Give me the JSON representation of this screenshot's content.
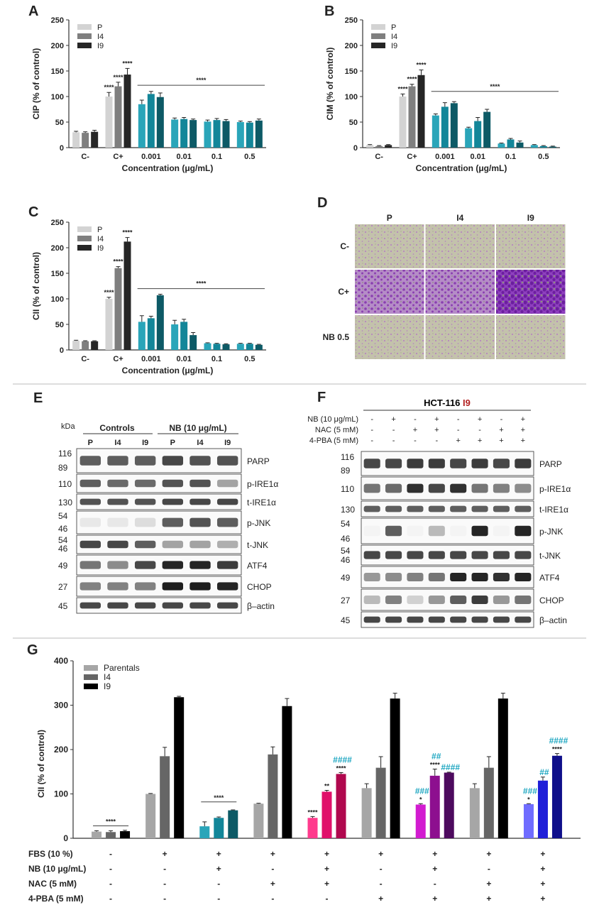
{
  "chart_data": [
    {
      "panel": "A",
      "type": "bar",
      "ylabel": "CIP (% of control)",
      "xlabel": "Concentration (μg/mL)",
      "categories": [
        "C-",
        "C+",
        "0.001",
        "0.01",
        "0.1",
        "0.5"
      ],
      "ylim": [
        0,
        250
      ],
      "yticks": [
        0,
        50,
        100,
        150,
        200,
        250
      ],
      "legend": [
        "P",
        "I4",
        "I9"
      ],
      "series": [
        {
          "name": "P",
          "values": [
            30,
            100,
            85,
            55,
            51,
            50
          ],
          "errors": [
            2,
            8,
            8,
            3,
            3,
            2
          ]
        },
        {
          "name": "I4",
          "values": [
            29,
            120,
            105,
            56,
            54,
            49
          ],
          "errors": [
            2,
            8,
            5,
            3,
            3,
            2
          ]
        },
        {
          "name": "I9",
          "values": [
            31,
            143,
            99,
            54,
            52,
            53
          ],
          "errors": [
            3,
            12,
            8,
            2,
            3,
            3
          ]
        }
      ],
      "annotations": [
        "****",
        "****",
        "****",
        "****"
      ]
    },
    {
      "panel": "B",
      "type": "bar",
      "ylabel": "CIM (% of control)",
      "xlabel": "Concentration (μg/mL)",
      "categories": [
        "C-",
        "C+",
        "0.001",
        "0.01",
        "0.1",
        "0.5"
      ],
      "ylim": [
        0,
        250
      ],
      "yticks": [
        0,
        50,
        100,
        150,
        200,
        250
      ],
      "legend": [
        "P",
        "I4",
        "I9"
      ],
      "series": [
        {
          "name": "P",
          "values": [
            5,
            100,
            63,
            38,
            8,
            5
          ],
          "errors": [
            1,
            5,
            3,
            2,
            1,
            1
          ]
        },
        {
          "name": "I4",
          "values": [
            3,
            120,
            80,
            52,
            16,
            3
          ],
          "errors": [
            1,
            4,
            8,
            7,
            2,
            1
          ]
        },
        {
          "name": "I9",
          "values": [
            5,
            142,
            87,
            70,
            10,
            2
          ],
          "errors": [
            1,
            10,
            3,
            5,
            3,
            1
          ]
        }
      ],
      "annotations": [
        "****",
        "****",
        "****",
        "****"
      ]
    },
    {
      "panel": "C",
      "type": "bar",
      "ylabel": "CII (% of control)",
      "xlabel": "Concentration (μg/mL)",
      "categories": [
        "C-",
        "C+",
        "0.001",
        "0.01",
        "0.1",
        "0.5"
      ],
      "ylim": [
        0,
        250
      ],
      "yticks": [
        0,
        50,
        100,
        150,
        200,
        250
      ],
      "legend": [
        "P",
        "I4",
        "I9"
      ],
      "series": [
        {
          "name": "P",
          "values": [
            18,
            100,
            55,
            50,
            13,
            12
          ],
          "errors": [
            1,
            3,
            12,
            8,
            1,
            1
          ]
        },
        {
          "name": "I4",
          "values": [
            17,
            160,
            62,
            55,
            12,
            12
          ],
          "errors": [
            1,
            3,
            4,
            5,
            1,
            1
          ]
        },
        {
          "name": "I9",
          "values": [
            17,
            212,
            107,
            29,
            11,
            10
          ],
          "errors": [
            1,
            8,
            2,
            5,
            1,
            1
          ]
        }
      ],
      "annotations": [
        "****",
        "****",
        "****",
        "****"
      ]
    },
    {
      "panel": "G",
      "type": "bar",
      "ylabel": "CII (% of control)",
      "ylim": [
        0,
        400
      ],
      "yticks": [
        0,
        100,
        200,
        300,
        400
      ],
      "legend": [
        "Parentals",
        "I4",
        "I9"
      ],
      "groups": [
        {
          "values": [
            15,
            14,
            16
          ],
          "errors": [
            2,
            3,
            2
          ],
          "stars": [
            "",
            "",
            ""
          ],
          "hash": [
            "",
            "",
            ""
          ]
        },
        {
          "values": [
            100,
            185,
            318
          ],
          "errors": [
            1,
            20,
            2
          ],
          "stars": [
            "",
            "",
            ""
          ],
          "hash": [
            "",
            "",
            ""
          ]
        },
        {
          "values": [
            27,
            46,
            63
          ],
          "errors": [
            10,
            2,
            1
          ],
          "stars": [
            "",
            "",
            ""
          ],
          "hash": [
            "",
            "",
            ""
          ]
        },
        {
          "values": [
            78,
            189,
            298
          ],
          "errors": [
            1,
            17,
            17
          ],
          "stars": [
            "",
            "",
            ""
          ],
          "hash": [
            "",
            "",
            ""
          ]
        },
        {
          "values": [
            46,
            105,
            145
          ],
          "errors": [
            3,
            3,
            3
          ],
          "stars": [
            "****",
            "**",
            "****"
          ],
          "hash": [
            "",
            "",
            "####"
          ]
        },
        {
          "values": [
            113,
            159,
            315
          ],
          "errors": [
            10,
            25,
            12
          ],
          "stars": [
            "",
            "",
            ""
          ],
          "hash": [
            "",
            "",
            ""
          ]
        },
        {
          "values": [
            76,
            141,
            148
          ],
          "errors": [
            2,
            15,
            1
          ],
          "stars": [
            "*",
            "****",
            ""
          ],
          "hash": [
            "###",
            "##",
            "####"
          ]
        },
        {
          "values": [
            113,
            159,
            315
          ],
          "errors": [
            10,
            25,
            12
          ],
          "stars": [
            "",
            "",
            ""
          ],
          "hash": [
            "",
            "",
            ""
          ]
        },
        {
          "values": [
            77,
            130,
            186
          ],
          "errors": [
            1,
            8,
            5
          ],
          "stars": [
            "*",
            "",
            "****"
          ],
          "hash": [
            "###",
            "##",
            "####"
          ]
        }
      ],
      "group_annotation_first": "****",
      "group_annotation_third": "****",
      "conditions": [
        {
          "label": "FBS (10 %)",
          "marks": [
            "-",
            "+",
            "+",
            "+",
            "+",
            "+",
            "+",
            "+",
            "+"
          ]
        },
        {
          "label": "NB (10 μg/mL)",
          "marks": [
            "-",
            "-",
            "+",
            "-",
            "+",
            "-",
            "+",
            "-",
            "+"
          ]
        },
        {
          "label": "NAC (5 mM)",
          "marks": [
            "-",
            "-",
            "-",
            "+",
            "+",
            "-",
            "-",
            "+",
            "+"
          ]
        },
        {
          "label": "4-PBA (5 mM)",
          "marks": [
            "-",
            "-",
            "-",
            "-",
            "-",
            "+",
            "+",
            "+",
            "+"
          ]
        }
      ]
    }
  ],
  "panels": {
    "A": "A",
    "B": "B",
    "C": "C",
    "D": "D",
    "E": "E",
    "F": "F",
    "G": "G"
  },
  "panelD": {
    "cols": [
      "P",
      "I4",
      "I9"
    ],
    "rows": [
      "C-",
      "C+",
      "NB 0.5"
    ]
  },
  "panelE": {
    "kda": "kDa",
    "controls": "Controls",
    "nb": "NB (10 μg/mL)",
    "lanes": [
      "P",
      "I4",
      "I9",
      "P",
      "I4",
      "I9"
    ],
    "bands": [
      {
        "kda": [
          "116",
          "89"
        ],
        "label": "PARP"
      },
      {
        "kda": [
          "110"
        ],
        "label": "p-IRE1α"
      },
      {
        "kda": [
          "130"
        ],
        "label": "t-IRE1α"
      },
      {
        "kda": [
          "54",
          "46"
        ],
        "label": "p-JNK"
      },
      {
        "kda": [
          "54",
          "46"
        ],
        "label": "t-JNK"
      },
      {
        "kda": [
          "49"
        ],
        "label": "ATF4"
      },
      {
        "kda": [
          "27"
        ],
        "label": "CHOP"
      },
      {
        "kda": [
          "45"
        ],
        "label": "β–actin"
      }
    ]
  },
  "panelF": {
    "title_cell": "HCT-116",
    "title_line": "I9",
    "treat_rows": [
      {
        "label": "NB (10 μg/mL)",
        "marks": [
          "-",
          "+",
          "-",
          "+",
          "-",
          "+",
          "-",
          "+"
        ]
      },
      {
        "label": "NAC (5 mM)",
        "marks": [
          "-",
          "-",
          "+",
          "+",
          "-",
          "-",
          "+",
          "+"
        ]
      },
      {
        "label": "4-PBA (5 mM)",
        "marks": [
          "-",
          "-",
          "-",
          "-",
          "+",
          "+",
          "+",
          "+"
        ]
      }
    ],
    "bands": [
      {
        "kda": [
          "116",
          "89"
        ],
        "label": "PARP"
      },
      {
        "kda": [
          "110"
        ],
        "label": "p-IRE1α"
      },
      {
        "kda": [
          "130"
        ],
        "label": "t-IRE1α"
      },
      {
        "kda": [
          "54",
          "46"
        ],
        "label": "p-JNK"
      },
      {
        "kda": [
          "54",
          "46"
        ],
        "label": "t-JNK"
      },
      {
        "kda": [
          "49"
        ],
        "label": "ATF4"
      },
      {
        "kda": [
          "27"
        ],
        "label": "CHOP"
      },
      {
        "kda": [
          "45"
        ],
        "label": "β–actin"
      }
    ]
  },
  "colors": {
    "P": "#d3d3d3",
    "I4": "#7f7f7f",
    "I9": "#262626",
    "teal1": "#2aa5b9",
    "teal2": "#138699",
    "teal3": "#0d5a66",
    "g_hash": "#1aa5c0",
    "red_line": "#b32020"
  }
}
